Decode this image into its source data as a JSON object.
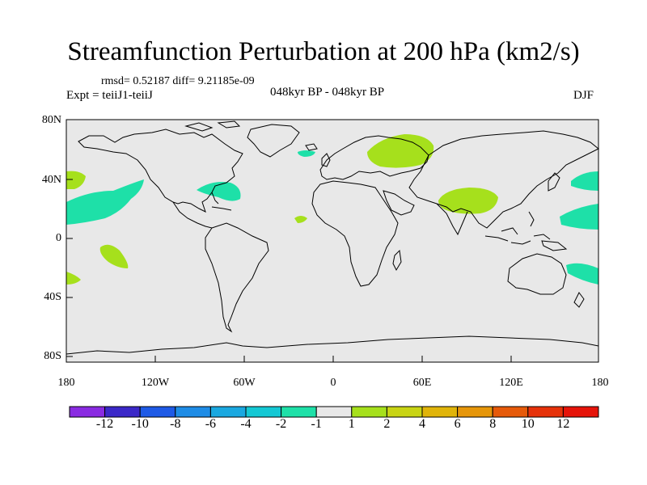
{
  "title": "Streamfunction Perturbation at 200 hPa (km2/s)",
  "stats": "rmsd= 0.52187 diff= 9.21185e-09",
  "experiment": "Expt = teiiJ1-teiiJ",
  "period": "048kyr BP - 048kyr BP",
  "season": "DJF",
  "y_ticks": [
    "80N",
    "40N",
    "0",
    "40S",
    "80S"
  ],
  "x_ticks": [
    "180",
    "120W",
    "60W",
    "0",
    "60E",
    "120E",
    "180"
  ],
  "colorbar": {
    "labels": [
      "-12",
      "-10",
      "-8",
      "-6",
      "-4",
      "-2",
      "-1",
      "1",
      "2",
      "4",
      "6",
      "8",
      "10",
      "12"
    ],
    "colors": [
      "#8a2be2",
      "#3b28c8",
      "#1e5ae6",
      "#1e8ce6",
      "#1aa8e0",
      "#14c8d4",
      "#1ee0a8",
      "#e8e8e8",
      "#a6e01c",
      "#c8d414",
      "#e0b40a",
      "#e6960a",
      "#e65a0a",
      "#e6320a",
      "#e6140a"
    ]
  },
  "colors": {
    "ocean_background": "#e8e8e8",
    "negative_contour_fill": "#1ee0a8",
    "positive_contour_fill": "#a6e01c",
    "coastline": "#000000"
  }
}
